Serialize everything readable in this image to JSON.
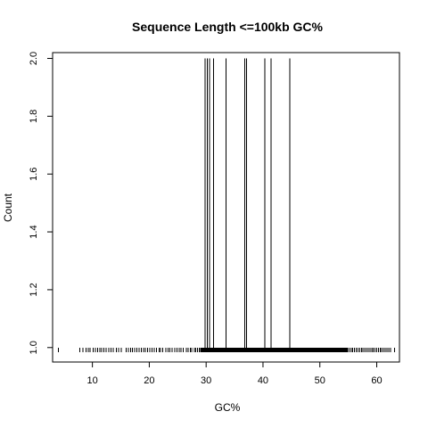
{
  "chart_data": {
    "type": "bar",
    "title": "Sequence Length <=100kb GC%",
    "xlabel": "GC%",
    "ylabel": "Count",
    "xlim": [
      3,
      64
    ],
    "ylim": [
      0.95,
      2.02
    ],
    "x_ticks": [
      10,
      20,
      30,
      40,
      50,
      60
    ],
    "y_ticks": [
      1.0,
      1.2,
      1.4,
      1.6,
      1.8,
      2.0
    ],
    "grid": false,
    "legend": "none",
    "series": [
      {
        "count_2_values": [
          29.8,
          30.2,
          30.6,
          31.3,
          33.5,
          36.8,
          37.1,
          40.3,
          41.4,
          44.7
        ],
        "count_1_values": [
          4.0,
          7.8,
          8.3,
          8.9,
          9.3,
          9.6,
          10.1,
          10.5,
          10.9,
          11.3,
          11.6,
          12.0,
          12.4,
          12.9,
          13.3,
          13.7,
          14.2,
          14.6,
          15.1,
          15.9,
          16.3,
          16.7,
          17.0,
          17.4,
          17.8,
          18.2,
          18.6,
          19.0,
          19.3,
          19.7,
          20.1,
          20.5,
          20.9,
          21.3,
          21.7,
          22.0,
          22.4,
          22.9,
          23.3,
          23.6,
          24.0,
          24.5,
          24.9,
          25.3,
          25.6,
          26.0,
          26.5,
          26.8,
          27.2,
          27.5,
          27.9,
          28.2,
          28.5,
          28.8,
          29.1,
          29.4,
          29.7,
          30.0,
          30.3,
          30.6,
          30.9,
          31.2,
          31.5,
          31.8,
          32.1,
          32.4,
          32.7,
          33.0,
          33.3,
          33.6,
          33.9,
          34.2,
          34.5,
          34.8,
          35.1,
          35.4,
          35.7,
          36.0,
          36.3,
          36.6,
          36.9,
          37.2,
          37.5,
          37.8,
          38.1,
          38.4,
          38.7,
          39.0,
          39.3,
          39.6,
          39.9,
          40.2,
          40.5,
          40.8,
          41.1,
          41.4,
          41.7,
          42.0,
          42.3,
          42.6,
          42.9,
          43.2,
          43.5,
          43.8,
          44.1,
          44.4,
          44.7,
          45.0,
          45.3,
          45.6,
          45.9,
          46.2,
          46.5,
          46.8,
          47.1,
          47.4,
          47.7,
          48.0,
          48.3,
          48.6,
          48.9,
          49.2,
          49.5,
          49.8,
          50.1,
          50.4,
          50.7,
          51.0,
          51.3,
          51.6,
          51.9,
          52.2,
          52.5,
          52.8,
          53.1,
          53.4,
          53.7,
          54.0,
          54.3,
          54.6,
          54.9,
          55.2,
          55.5,
          55.8,
          56.1,
          56.4,
          56.7,
          57.0,
          57.3,
          57.6,
          57.9,
          58.2,
          58.5,
          58.8,
          59.1,
          59.4,
          59.7,
          60.0,
          60.3,
          60.6,
          60.9,
          61.2,
          61.5,
          61.8,
          62.1,
          62.4,
          63.1
        ]
      }
    ]
  }
}
